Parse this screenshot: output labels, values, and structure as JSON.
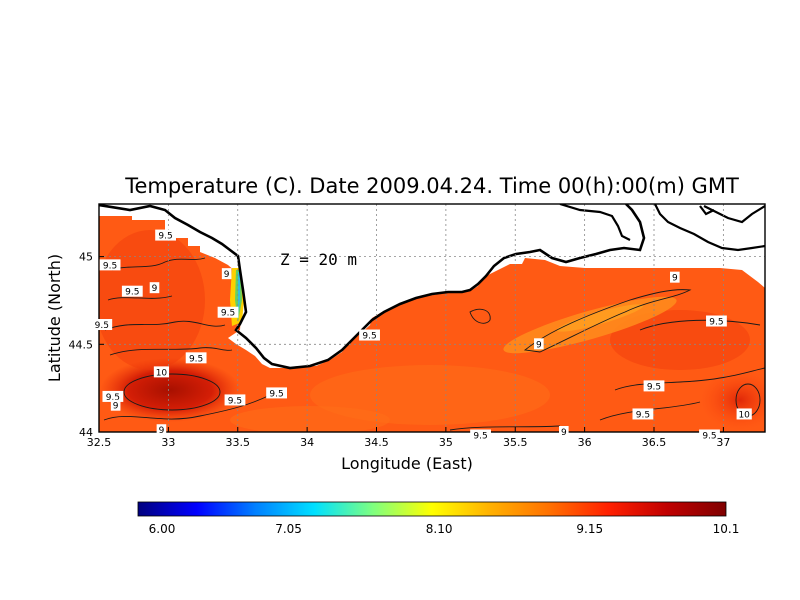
{
  "title": "Temperature (C). Date 2009.04.24. Time 00(h):00(m) GMT",
  "xlabel": "Longitude (East)",
  "ylabel": "Latitude (North)",
  "annotation": "Z = 20 m",
  "x_ticks": [
    "32.5",
    "33",
    "33.5",
    "34",
    "34.5",
    "35",
    "35.5",
    "36",
    "36.5",
    "37"
  ],
  "y_ticks": [
    "44",
    "44.5",
    "45"
  ],
  "colorbar": {
    "min": 6.0,
    "max": 10.1,
    "tick_labels": [
      "6.00",
      "7.05",
      "8.10",
      "9.15",
      "10.1"
    ],
    "colors": [
      "#00007f",
      "#0000ff",
      "#0080ff",
      "#00e0ff",
      "#7fff7f",
      "#ffff00",
      "#ffb000",
      "#ff7000",
      "#ff2000",
      "#c00000",
      "#7f0000"
    ]
  },
  "colors": {
    "sea_base": "#ff5a14",
    "land": "#ffffff",
    "coast": "#000000"
  },
  "chart_data": {
    "type": "heatmap",
    "variable": "Temperature (C)",
    "depth": "Z = 20 m",
    "xlim": [
      32.5,
      37.3
    ],
    "ylim": [
      44.0,
      45.3
    ],
    "color_range": [
      6.0,
      10.1
    ],
    "contour_labels": [
      {
        "text": "9.5",
        "lon": 32.58,
        "lat": 44.95
      },
      {
        "text": "9.5",
        "lon": 32.98,
        "lat": 45.12
      },
      {
        "text": "9.5",
        "lon": 32.74,
        "lat": 44.8
      },
      {
        "text": "9",
        "lon": 32.9,
        "lat": 44.82
      },
      {
        "text": "9.5",
        "lon": 32.52,
        "lat": 44.61
      },
      {
        "text": "9.5",
        "lon": 33.2,
        "lat": 44.42
      },
      {
        "text": "9",
        "lon": 33.42,
        "lat": 44.9
      },
      {
        "text": "9.5",
        "lon": 33.43,
        "lat": 44.68
      },
      {
        "text": "10",
        "lon": 32.95,
        "lat": 44.34
      },
      {
        "text": "9.5",
        "lon": 32.6,
        "lat": 44.2
      },
      {
        "text": "9",
        "lon": 32.62,
        "lat": 44.15
      },
      {
        "text": "9.5",
        "lon": 33.48,
        "lat": 44.18
      },
      {
        "text": "9.5",
        "lon": 33.78,
        "lat": 44.22
      },
      {
        "text": "9.5",
        "lon": 34.45,
        "lat": 44.55
      },
      {
        "text": "9",
        "lon": 35.67,
        "lat": 44.5
      },
      {
        "text": "9",
        "lon": 36.65,
        "lat": 44.88
      },
      {
        "text": "9.5",
        "lon": 36.95,
        "lat": 44.63
      },
      {
        "text": "9.5",
        "lon": 36.5,
        "lat": 44.26
      },
      {
        "text": "9.5",
        "lon": 36.42,
        "lat": 44.1
      },
      {
        "text": "10",
        "lon": 37.15,
        "lat": 44.1
      },
      {
        "text": "9.5",
        "lon": 35.25,
        "lat": 43.98
      },
      {
        "text": "9",
        "lon": 35.85,
        "lat": 44.0
      },
      {
        "text": "9",
        "lon": 32.95,
        "lat": 44.01
      },
      {
        "text": "9.5",
        "lon": 36.9,
        "lat": 43.98
      }
    ]
  }
}
